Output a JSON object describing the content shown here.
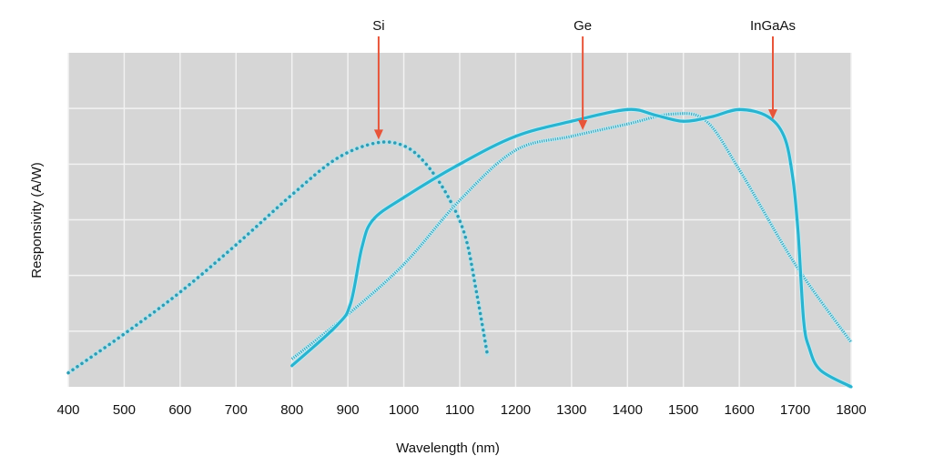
{
  "chart_data": {
    "type": "line",
    "title": "",
    "xlabel": "Wavelength (nm)",
    "ylabel": "Responsivity (A/W)",
    "xlim": [
      400,
      1800
    ],
    "ylim": [
      0,
      6
    ],
    "x_ticks": [
      "400",
      "500",
      "600",
      "700",
      "800",
      "900",
      "1000",
      "1100",
      "1200",
      "1300",
      "1400",
      "1500",
      "1600",
      "1700",
      "1800"
    ],
    "y_tick_labels_shown": false,
    "grid": true,
    "colors": {
      "background": "#d6d6d6",
      "grid": "#f2f2f2",
      "curve": "#2ab3cf",
      "arrow": "#e8553a"
    },
    "series": [
      {
        "name": "Si",
        "style": "dotted",
        "label_x": 955,
        "points": [
          [
            400,
            0.25
          ],
          [
            500,
            0.95
          ],
          [
            600,
            1.7
          ],
          [
            700,
            2.55
          ],
          [
            800,
            3.45
          ],
          [
            880,
            4.1
          ],
          [
            950,
            4.38
          ],
          [
            1000,
            4.33
          ],
          [
            1040,
            4.0
          ],
          [
            1080,
            3.4
          ],
          [
            1110,
            2.7
          ],
          [
            1130,
            1.7
          ],
          [
            1150,
            0.55
          ]
        ]
      },
      {
        "name": "Ge",
        "style": "hatched",
        "label_x": 1320,
        "points": [
          [
            800,
            0.5
          ],
          [
            900,
            1.3
          ],
          [
            1000,
            2.2
          ],
          [
            1100,
            3.35
          ],
          [
            1200,
            4.25
          ],
          [
            1300,
            4.5
          ],
          [
            1400,
            4.72
          ],
          [
            1480,
            4.9
          ],
          [
            1540,
            4.78
          ],
          [
            1600,
            3.9
          ],
          [
            1700,
            2.2
          ],
          [
            1800,
            0.8
          ]
        ]
      },
      {
        "name": "InGaAs",
        "style": "solid",
        "label_x": 1660,
        "points": [
          [
            800,
            0.38
          ],
          [
            880,
            1.1
          ],
          [
            905,
            1.5
          ],
          [
            925,
            2.5
          ],
          [
            945,
            3.0
          ],
          [
            1000,
            3.4
          ],
          [
            1100,
            4.0
          ],
          [
            1200,
            4.5
          ],
          [
            1300,
            4.77
          ],
          [
            1400,
            4.98
          ],
          [
            1450,
            4.88
          ],
          [
            1500,
            4.77
          ],
          [
            1550,
            4.85
          ],
          [
            1600,
            4.98
          ],
          [
            1650,
            4.86
          ],
          [
            1680,
            4.5
          ],
          [
            1695,
            3.8
          ],
          [
            1705,
            2.8
          ],
          [
            1715,
            1.2
          ],
          [
            1725,
            0.7
          ],
          [
            1745,
            0.3
          ],
          [
            1800,
            0.0
          ]
        ]
      }
    ]
  }
}
